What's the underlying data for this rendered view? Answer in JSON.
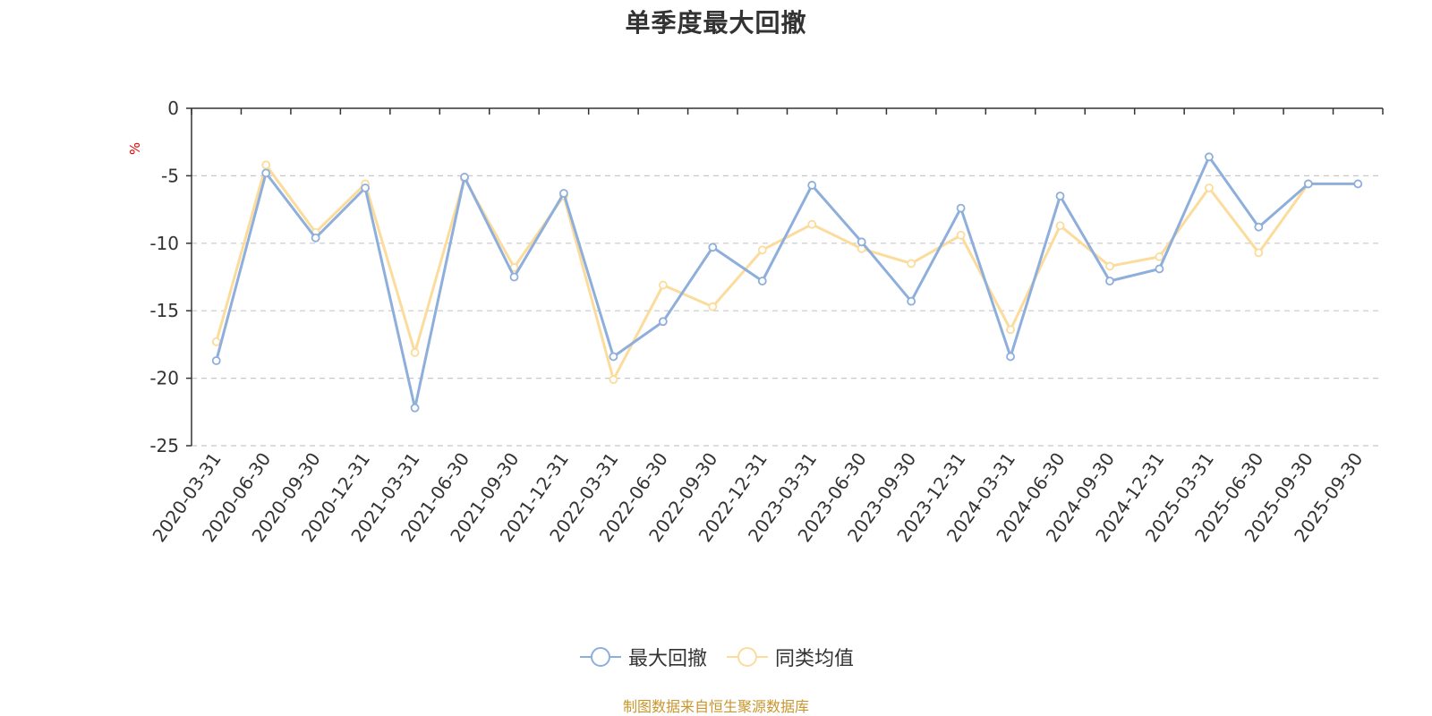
{
  "title": "单季度最大回撤",
  "source": "制图数据来自恒生聚源数据库",
  "unit": "%",
  "colors": {
    "series_0": "#8eaedc",
    "series_1": "#fbdc9c"
  },
  "chart_data": {
    "type": "line",
    "title": "单季度最大回撤",
    "ylabel": "%",
    "xlabel": "",
    "ylim": [
      -25,
      0
    ],
    "yticks": [
      0,
      -5,
      -10,
      -15,
      -20,
      -25
    ],
    "grid": "dashed horizontal",
    "legend_position": "bottom",
    "categories": [
      "2020-03-31",
      "2020-06-30",
      "2020-09-30",
      "2020-12-31",
      "2021-03-31",
      "2021-06-30",
      "2021-09-30",
      "2021-12-31",
      "2022-03-31",
      "2022-06-30",
      "2022-09-30",
      "2022-12-31",
      "2023-03-31",
      "2023-06-30",
      "2023-09-30",
      "2023-12-31",
      "2024-03-31",
      "2024-06-30",
      "2024-09-30",
      "2024-12-31",
      "2025-03-31",
      "2025-06-30",
      "2025-09-30",
      "2025-09-30"
    ],
    "series": [
      {
        "name": "最大回撤",
        "values": [
          -18.7,
          -4.8,
          -9.6,
          -5.9,
          -22.2,
          -5.1,
          -12.5,
          -6.3,
          -18.4,
          -15.8,
          -10.3,
          -12.8,
          -5.7,
          -9.9,
          -14.3,
          -7.4,
          -18.4,
          -6.5,
          -12.8,
          -11.9,
          -3.6,
          -8.8,
          -5.6,
          -5.6
        ]
      },
      {
        "name": "同类均值",
        "values": [
          -17.3,
          -4.2,
          -9.2,
          -5.6,
          -18.1,
          -5.2,
          -11.8,
          -6.5,
          -20.1,
          -13.1,
          -14.7,
          -10.5,
          -8.6,
          -10.4,
          -11.5,
          -9.4,
          -16.4,
          -8.7,
          -11.7,
          -11.0,
          -5.9,
          -10.7,
          -5.6,
          null
        ]
      }
    ]
  }
}
